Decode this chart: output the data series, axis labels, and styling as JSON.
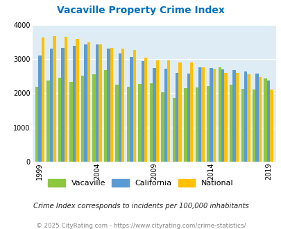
{
  "title": "Vacaville Property Crime Index",
  "years": [
    1999,
    2000,
    2001,
    2002,
    2003,
    2004,
    2005,
    2006,
    2007,
    2008,
    2009,
    2010,
    2011,
    2012,
    2013,
    2014,
    2015,
    2016,
    2017,
    2018,
    2019
  ],
  "vacaville": [
    2190,
    2380,
    2460,
    2330,
    2520,
    2550,
    2680,
    2260,
    2200,
    2280,
    2290,
    2040,
    1860,
    2150,
    2170,
    2220,
    2760,
    2250,
    2130,
    2110,
    2440
  ],
  "california": [
    3110,
    3310,
    3330,
    3400,
    3430,
    3430,
    3310,
    3170,
    3060,
    2950,
    2750,
    2730,
    2600,
    2580,
    2760,
    2750,
    2700,
    2690,
    2640,
    2590,
    2380
  ],
  "national": [
    3630,
    3680,
    3650,
    3590,
    3500,
    3440,
    3340,
    3310,
    3280,
    3050,
    2970,
    2960,
    2910,
    2900,
    2760,
    2730,
    2610,
    2600,
    2550,
    2480,
    2110
  ],
  "vacaville_color": "#8dc63f",
  "california_color": "#5b9bd5",
  "national_color": "#ffc000",
  "bg_color": "#deedf5",
  "title_color": "#0070c0",
  "ylim": [
    0,
    4000
  ],
  "yticks": [
    0,
    1000,
    2000,
    3000,
    4000
  ],
  "note": "Crime Index corresponds to incidents per 100,000 inhabitants",
  "footer": "© 2025 CityRating.com - https://www.cityrating.com/crime-statistics/",
  "xtick_years": [
    1999,
    2004,
    2009,
    2014,
    2019
  ]
}
